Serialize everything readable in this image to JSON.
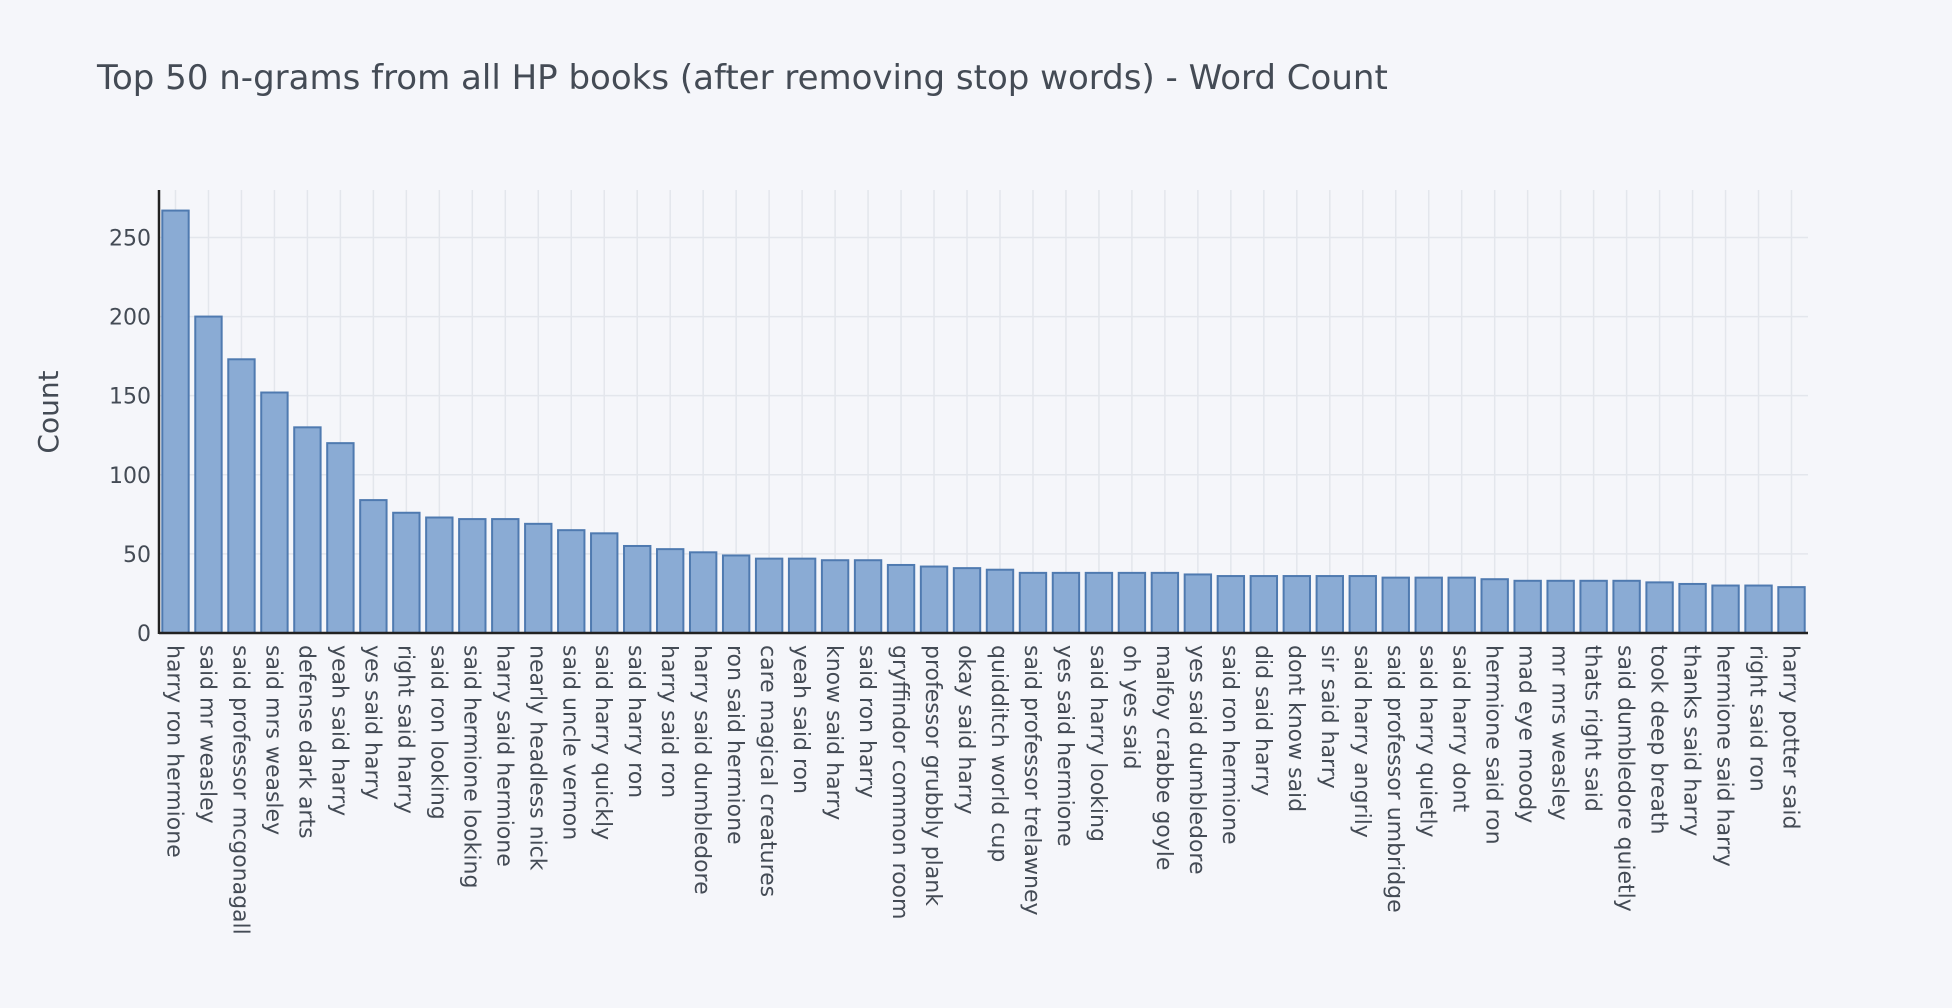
{
  "chart_data": {
    "type": "bar",
    "title": "Top 50 n-grams from all HP books (after removing stop words) - Word Count",
    "xlabel": "",
    "ylabel": "Count",
    "ylim": [
      0,
      280
    ],
    "yticks": [
      0,
      50,
      100,
      150,
      200,
      250
    ],
    "grid": true,
    "colors": {
      "bar_fill": "#8aabd4",
      "bar_stroke": "#4f7ab0",
      "background": "#f5f6fa",
      "grid": "#e3e6ec"
    },
    "categories": [
      "harry ron hermione",
      "said mr weasley",
      "said professor mcgonagall",
      "said mrs weasley",
      "defense dark arts",
      "yeah said harry",
      "yes said harry",
      "right said harry",
      "said ron looking",
      "said hermione looking",
      "harry said hermione",
      "nearly headless nick",
      "said uncle vernon",
      "said harry quickly",
      "said harry ron",
      "harry said ron",
      "harry said dumbledore",
      "ron said hermione",
      "care magical creatures",
      "yeah said ron",
      "know said harry",
      "said ron harry",
      "gryffindor common room",
      "professor grubbly plank",
      "okay said harry",
      "quidditch world cup",
      "said professor trelawney",
      "yes said hermione",
      "said harry looking",
      "oh yes said",
      "malfoy crabbe goyle",
      "yes said dumbledore",
      "said ron hermione",
      "did said harry",
      "dont know said",
      "sir said harry",
      "said harry angrily",
      "said professor umbridge",
      "said harry quietly",
      "said harry dont",
      "hermione said ron",
      "mad eye moody",
      "mr mrs weasley",
      "thats right said",
      "said dumbledore quietly",
      "took deep breath",
      "thanks said harry",
      "hermione said harry",
      "right said ron",
      "harry potter said"
    ],
    "values": [
      267,
      200,
      173,
      152,
      130,
      120,
      84,
      76,
      73,
      72,
      72,
      69,
      65,
      63,
      55,
      53,
      51,
      49,
      47,
      47,
      46,
      46,
      43,
      42,
      41,
      40,
      38,
      38,
      38,
      38,
      38,
      37,
      36,
      36,
      36,
      36,
      36,
      35,
      35,
      35,
      34,
      33,
      33,
      33,
      33,
      32,
      31,
      30,
      30,
      29
    ]
  }
}
